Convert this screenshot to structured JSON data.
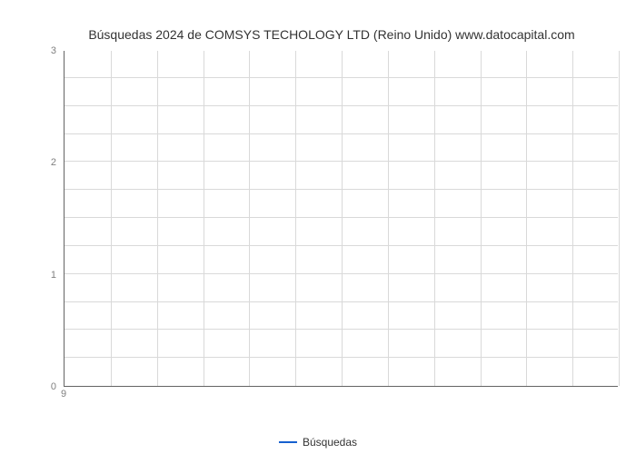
{
  "chart": {
    "type": "line",
    "title": "Búsquedas 2024 de COMSYS TECHOLOGY LTD (Reino Unido) www.datocapital.com",
    "title_fontsize": 14,
    "title_color": "#333333",
    "background_color": "#ffffff",
    "plot_border_color": "#646464",
    "grid_color": "#d9d9d9",
    "ylim": [
      0,
      3
    ],
    "ytick_step_major": 1,
    "ytick_step_minor": 0.25,
    "y_ticks": [
      0,
      1,
      2,
      3
    ],
    "y_minor_lines": [
      0.25,
      0.5,
      0.75,
      1,
      1.25,
      1.5,
      1.75,
      2,
      2.25,
      2.5,
      2.75
    ],
    "xlim": [
      9,
      21
    ],
    "x_ticks": [
      9
    ],
    "x_grid_count": 12,
    "series": [
      {
        "name": "Búsquedas",
        "color": "#1660cf",
        "line_width": 2,
        "x": [],
        "y": []
      }
    ],
    "legend": {
      "position": "bottom-center",
      "label": "Búsquedas",
      "fontsize": 12,
      "color": "#333333"
    },
    "label_fontsize": 11,
    "label_color": "#808080"
  }
}
